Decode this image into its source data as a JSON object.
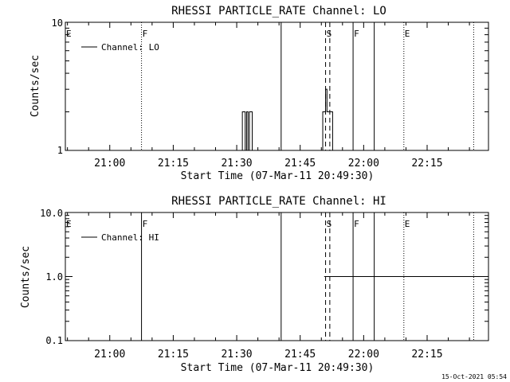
{
  "timestamp": "15-Oct-2021 05:54",
  "colors": {
    "background": "#ffffff",
    "foreground": "#000000"
  },
  "chart_data": [
    {
      "type": "line",
      "title": "RHESSI PARTICLE_RATE Channel: LO",
      "xlabel": "Start Time (07-Mar-11 20:49:30)",
      "ylabel": "Counts/sec",
      "yscale": "log",
      "ylim": [
        1,
        10
      ],
      "xlim": [
        "20:49:30",
        "22:29:30"
      ],
      "x_ticks": [
        "21:00",
        "21:15",
        "21:30",
        "21:45",
        "22:00",
        "22:15"
      ],
      "y_ticks": [
        "1",
        "10"
      ],
      "legend": {
        "position": "top-left",
        "entries": [
          "Channel: LO"
        ]
      },
      "markers": [
        {
          "label": "E",
          "time": "20:49:30",
          "style": "none"
        },
        {
          "label": "F",
          "time": "21:07:30",
          "style": "dotted"
        },
        {
          "label": "",
          "time": "21:40:30",
          "style": "solid"
        },
        {
          "label": "S",
          "time": "21:51:00",
          "style": "dashed"
        },
        {
          "label": "",
          "time": "21:52:00",
          "style": "dashed"
        },
        {
          "label": "F",
          "time": "21:57:30",
          "style": "solid"
        },
        {
          "label": "",
          "time": "22:02:30",
          "style": "solid"
        },
        {
          "label": "E",
          "time": "22:09:30",
          "style": "dotted"
        },
        {
          "label": "",
          "time": "22:26:00",
          "style": "dotted"
        }
      ],
      "series": [
        {
          "name": "Channel: LO",
          "x": [
            "21:31:00",
            "21:31:20",
            "21:31:40",
            "21:32:00",
            "21:32:20",
            "21:32:40",
            "21:33:00",
            "21:33:20",
            "21:33:40",
            "21:34:00",
            "21:34:20",
            "21:34:40",
            "21:35:00",
            "21:50:00",
            "21:50:20",
            "21:50:40",
            "21:51:00",
            "21:51:20",
            "21:51:40",
            "21:52:00",
            "21:52:20",
            "21:52:40",
            "21:53:00"
          ],
          "y": [
            1,
            2,
            2,
            1,
            2,
            1,
            2,
            2,
            1,
            1,
            1,
            1,
            1,
            1,
            2,
            2,
            3,
            2,
            2,
            2,
            2,
            1,
            1
          ]
        }
      ]
    },
    {
      "type": "line",
      "title": "RHESSI PARTICLE_RATE Channel: HI",
      "xlabel": "Start Time (07-Mar-11 20:49:30)",
      "ylabel": "Counts/sec",
      "yscale": "log",
      "ylim": [
        0.1,
        10
      ],
      "xlim": [
        "20:49:30",
        "22:29:30"
      ],
      "x_ticks": [
        "21:00",
        "21:15",
        "21:30",
        "21:45",
        "22:00",
        "22:15"
      ],
      "y_ticks": [
        "0.1",
        "1.0",
        "10.0"
      ],
      "legend": {
        "position": "top-left",
        "entries": [
          "Channel: HI"
        ]
      },
      "markers": [
        {
          "label": "E",
          "time": "20:49:30",
          "style": "none"
        },
        {
          "label": "F",
          "time": "21:07:30",
          "style": "solid"
        },
        {
          "label": "",
          "time": "21:40:30",
          "style": "solid"
        },
        {
          "label": "S",
          "time": "21:51:00",
          "style": "dashed"
        },
        {
          "label": "",
          "time": "21:52:00",
          "style": "dashed"
        },
        {
          "label": "F",
          "time": "21:57:30",
          "style": "solid"
        },
        {
          "label": "",
          "time": "22:02:30",
          "style": "solid"
        },
        {
          "label": "E",
          "time": "22:09:30",
          "style": "dotted"
        },
        {
          "label": "",
          "time": "22:26:00",
          "style": "dotted"
        }
      ],
      "series": [
        {
          "name": "Channel: HI",
          "x": [
            "21:50:40",
            "21:52:20",
            "22:28:30",
            "22:29:30"
          ],
          "y": [
            1,
            1,
            1,
            1
          ]
        }
      ]
    }
  ]
}
